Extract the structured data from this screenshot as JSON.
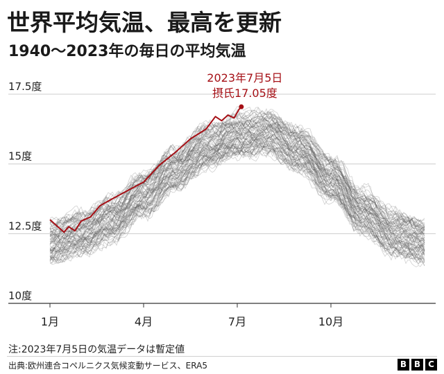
{
  "header": {
    "title": "世界平均気温、最高を更新",
    "subtitle": "1940～2023年の毎日の平均気温"
  },
  "footer": {
    "note": "注:2023年7月5日の気温データは暫定値",
    "source": "出典:欧州連合コペルニクス気候変動サービス、ERA5",
    "logo": [
      "B",
      "B",
      "C"
    ]
  },
  "colors": {
    "highlight": "#a50f15",
    "background_lines": "#555555",
    "grid": "#cccccc"
  },
  "chart_data": {
    "type": "line",
    "x_axis": {
      "ticks": [
        {
          "month": 1,
          "label": "1月"
        },
        {
          "month": 4,
          "label": "4月"
        },
        {
          "month": 7,
          "label": "7月"
        },
        {
          "month": 10,
          "label": "10月"
        }
      ],
      "range_months": [
        1,
        13
      ]
    },
    "y_axis": {
      "ticks": [
        {
          "value": 10,
          "label": "10度"
        },
        {
          "value": 12.5,
          "label": "12.5度"
        },
        {
          "value": 15,
          "label": "15度"
        },
        {
          "value": 17.5,
          "label": "17.5度"
        }
      ],
      "ylim": [
        10,
        17.7
      ]
    },
    "grid": true,
    "background_series": {
      "years": [
        1940,
        2022
      ],
      "count": 83,
      "climatology_by_month": [
        {
          "month": 1,
          "value": 12.2
        },
        {
          "month": 2,
          "value": 12.5
        },
        {
          "month": 3,
          "value": 13.0
        },
        {
          "month": 4,
          "value": 13.9
        },
        {
          "month": 5,
          "value": 14.8
        },
        {
          "month": 6,
          "value": 15.6
        },
        {
          "month": 7,
          "value": 16.0
        },
        {
          "month": 8,
          "value": 16.1
        },
        {
          "month": 9,
          "value": 15.5
        },
        {
          "month": 10,
          "value": 14.5
        },
        {
          "month": 11,
          "value": 13.3
        },
        {
          "month": 12,
          "value": 12.5
        },
        {
          "month": 13,
          "value": 12.2
        }
      ],
      "spread": 0.9
    },
    "series": [
      {
        "year": 2023,
        "points": [
          {
            "x": 1.0,
            "y": 13.0
          },
          {
            "x": 1.2,
            "y": 12.8
          },
          {
            "x": 1.45,
            "y": 12.55
          },
          {
            "x": 1.6,
            "y": 12.75
          },
          {
            "x": 1.8,
            "y": 12.6
          },
          {
            "x": 2.0,
            "y": 12.95
          },
          {
            "x": 2.3,
            "y": 13.1
          },
          {
            "x": 2.6,
            "y": 13.5
          },
          {
            "x": 3.0,
            "y": 13.75
          },
          {
            "x": 3.5,
            "y": 14.05
          },
          {
            "x": 4.0,
            "y": 14.35
          },
          {
            "x": 4.5,
            "y": 14.95
          },
          {
            "x": 5.0,
            "y": 15.4
          },
          {
            "x": 5.5,
            "y": 15.9
          },
          {
            "x": 6.0,
            "y": 16.25
          },
          {
            "x": 6.3,
            "y": 16.7
          },
          {
            "x": 6.5,
            "y": 16.55
          },
          {
            "x": 6.7,
            "y": 16.75
          },
          {
            "x": 6.9,
            "y": 16.65
          },
          {
            "x": 7.05,
            "y": 16.95
          },
          {
            "x": 7.13,
            "y": 17.05
          }
        ]
      }
    ],
    "annotation": {
      "x": 7.13,
      "y": 17.05,
      "lines": [
        "2023年7月5日",
        "摂氏17.05度"
      ]
    }
  }
}
